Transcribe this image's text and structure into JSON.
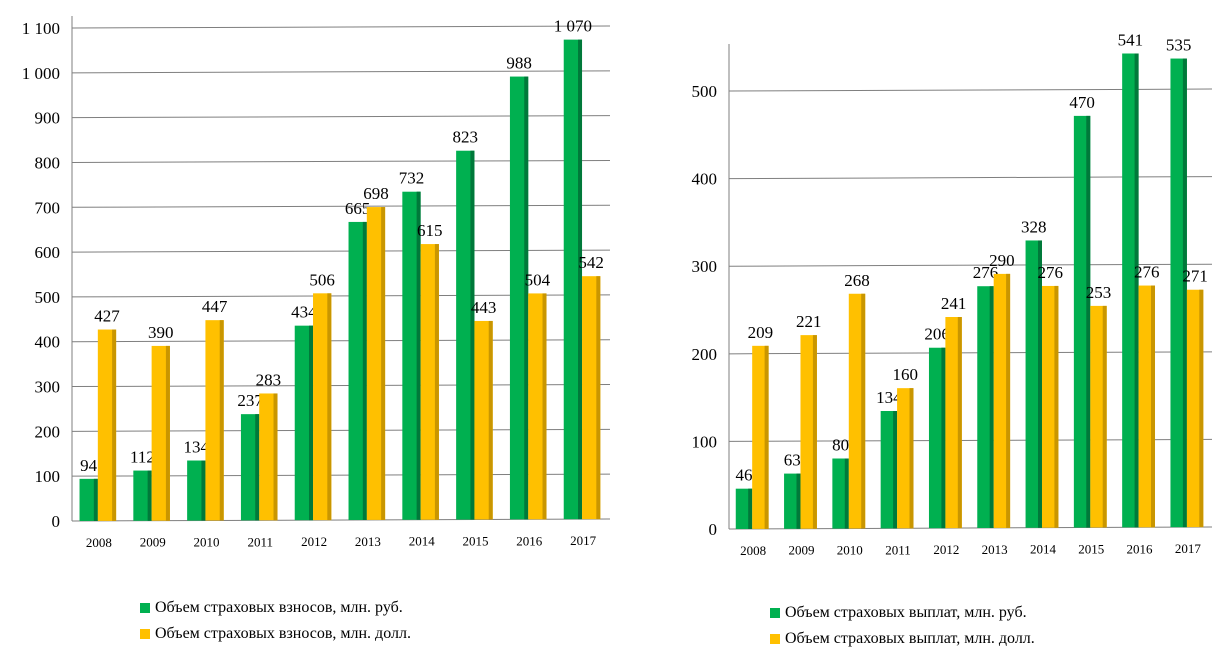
{
  "colors": {
    "green": "#00b050",
    "green_dark": "#00793a",
    "yellow": "#ffc000",
    "yellow_dark": "#c99600",
    "grid": "#7f7f7f",
    "axis": "#7f7f7f"
  },
  "chart_data": [
    {
      "type": "bar",
      "categories": [
        "2008",
        "2009",
        "2010",
        "2011",
        "2012",
        "2013",
        "2014",
        "2015",
        "2016",
        "2017"
      ],
      "series": [
        {
          "name": "Объем страховых взносов, млн. руб.",
          "values": [
            94,
            112,
            134,
            237,
            434,
            665,
            732,
            823,
            988,
            1070
          ],
          "labels": [
            "94",
            "112",
            "134",
            "237",
            "434",
            "665",
            "732",
            "823",
            "988",
            "1 070"
          ]
        },
        {
          "name": "Объем страховых взносов, млн. долл.",
          "values": [
            427,
            390,
            447,
            283,
            506,
            698,
            615,
            443,
            504,
            542
          ],
          "labels": [
            "427",
            "390",
            "447",
            "283",
            "506",
            "698",
            "615",
            "443",
            "504",
            "542"
          ]
        }
      ],
      "ylim": [
        0,
        1100
      ],
      "yticks": [
        0,
        100,
        200,
        300,
        400,
        500,
        600,
        700,
        800,
        900,
        1000,
        1100
      ],
      "ytick_labels": [
        "0",
        "100",
        "200",
        "300",
        "400",
        "500",
        "600",
        "700",
        "800",
        "900",
        "1 000",
        "1 100"
      ],
      "grid": true,
      "legend": "bottom"
    },
    {
      "type": "bar",
      "categories": [
        "2008",
        "2009",
        "2010",
        "2011",
        "2012",
        "2013",
        "2014",
        "2015",
        "2016",
        "2017"
      ],
      "series": [
        {
          "name": "Объем страховых выплат, млн. руб.",
          "values": [
            46,
            63,
            80,
            134,
            206,
            276,
            328,
            470,
            541,
            535
          ],
          "labels": [
            "46",
            "63",
            "80",
            "134",
            "206",
            "276",
            "328",
            "470",
            "541",
            "535"
          ]
        },
        {
          "name": "Объем страховых выплат, млн. долл.",
          "values": [
            209,
            221,
            268,
            160,
            241,
            290,
            276,
            253,
            276,
            271
          ],
          "labels": [
            "209",
            "221",
            "268",
            "160",
            "241",
            "290",
            "276",
            "253",
            "276",
            "271"
          ]
        }
      ],
      "ylim": [
        0,
        540
      ],
      "yticks": [
        0,
        100,
        200,
        300,
        400,
        500
      ],
      "ytick_labels": [
        "0",
        "100",
        "200",
        "300",
        "400",
        "500"
      ],
      "grid": true,
      "legend": "bottom"
    }
  ]
}
